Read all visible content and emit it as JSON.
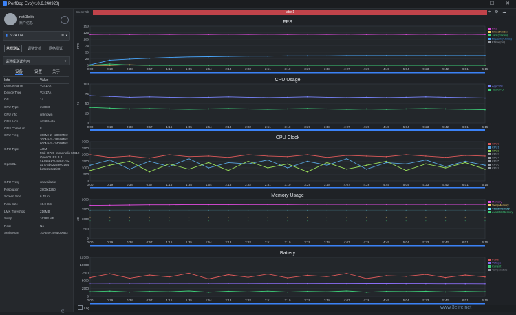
{
  "window": {
    "title": "PerfDog Evo(v10.6.240920)",
    "controls": [
      "—",
      "☐",
      "✕"
    ]
  },
  "user": {
    "name": "net 3elife",
    "account": "账户信息"
  },
  "device": {
    "name": "V2417A"
  },
  "mode_tabs": [
    "常规测试",
    "调整分析",
    "网络测试"
  ],
  "app_select": {
    "placeholder": "请选择测试应用"
  },
  "sub_tabs": [
    "设备",
    "设置",
    "关于"
  ],
  "info": {
    "headers": [
      "Info",
      "Value"
    ],
    "rows": [
      {
        "k": "Device Name",
        "v": "V2417A"
      },
      {
        "k": "Device Type",
        "v": "V2417A"
      },
      {
        "k": "OS",
        "v": "14"
      },
      {
        "k": "CPU Type",
        "v": "mt6989"
      },
      {
        "k": "CPU Info",
        "v": "unknown"
      },
      {
        "k": "CPU Arch",
        "v": "arm64-v8a"
      },
      {
        "k": "CPU CoreNum",
        "v": "8"
      },
      {
        "k": "CPU Freq",
        "v": "300MHz - 2000MHz\n300MHz - 2850MHz\n600MHz - 3400MHz"
      },
      {
        "k": "GPU Type",
        "v": "ARM\nMali-G720-Immortalis MC12\nOpenGL ES 3.2\nv1.r44p1-01eac0.752\na1773b6225fee3164\nbd9e2a0e2fa0"
      },
      {
        "k": "OpenGL",
        "v": ""
      },
      {
        "k": "GPU Freq",
        "v": "unavailable"
      },
      {
        "k": "Resolution",
        "v": "2800x1260"
      },
      {
        "k": "Screen Size",
        "v": "6.78 in"
      },
      {
        "k": "Ram Size",
        "v": "15.0 GB"
      },
      {
        "k": "LMK Threshold",
        "v": "216MB"
      },
      {
        "k": "Swap",
        "v": "16383 MB"
      },
      {
        "k": "Root",
        "v": "No"
      },
      {
        "k": "SerialNum",
        "v": "10AE9720NL000D2"
      }
    ]
  },
  "topbar": {
    "scene_tab": "SceneTab",
    "label": "label1",
    "icons": [
      "location-icon",
      "settings-icon",
      "cloud-icon"
    ]
  },
  "bottom": {
    "log_label": "Log"
  },
  "watermark": "www.3elife.net",
  "colors": {
    "accent": "#3b82f6",
    "label_bar": "#c0434a"
  },
  "chart_data": [
    {
      "type": "line",
      "title": "FPS",
      "ylabel": "FPS",
      "ylim": [
        0,
        150
      ],
      "yticks": [
        0,
        25,
        50,
        75,
        100,
        125,
        150
      ],
      "x": [
        "0:00",
        "0:19",
        "0:38",
        "0:57",
        "1:16",
        "1:35",
        "1:54",
        "2:13",
        "2:32",
        "2:51",
        "3:10",
        "3:29",
        "3:48",
        "4:07",
        "4:26",
        "4:45",
        "5:04",
        "5:23",
        "5:42",
        "6:01",
        "6:15"
      ],
      "series": [
        {
          "name": "FPS",
          "color": "#e24be0",
          "values": [
            118,
            119,
            118,
            119,
            118,
            119,
            118,
            119,
            118,
            119,
            118,
            119,
            118,
            119,
            118,
            119,
            118,
            119,
            118,
            119,
            118
          ]
        },
        {
          "name": "Jank",
          "color": "#ffd36a",
          "values": [
            0,
            0,
            2,
            0,
            0,
            0,
            0,
            0,
            0,
            0,
            0,
            0,
            0,
            0,
            0,
            0,
            0,
            0,
            0,
            0,
            0
          ]
        },
        {
          "name": "Stutter",
          "color": "#3fd17a",
          "values": [
            0,
            5,
            1,
            0,
            0,
            0,
            0,
            0,
            0,
            0,
            0,
            0,
            0,
            0,
            0,
            0,
            0,
            0,
            0,
            0,
            0
          ]
        },
        {
          "name": "FTime",
          "color": "#4aa8ff",
          "values": [
            2,
            20,
            24,
            27,
            30,
            32,
            33,
            34,
            35,
            35,
            36,
            36,
            36,
            37,
            37,
            37,
            37,
            37,
            37,
            37,
            37
          ]
        }
      ],
      "legend": [
        "FPS",
        "SmoothIndex",
        "Jank(/10min)",
        "BigJank(/10min)",
        "FTime(ms)"
      ]
    },
    {
      "type": "line",
      "title": "CPU Usage",
      "ylabel": "%",
      "ylim": [
        0,
        100
      ],
      "yticks": [
        0,
        25,
        50,
        75,
        100
      ],
      "x": [
        "0:00",
        "0:19",
        "0:38",
        "0:57",
        "1:16",
        "1:35",
        "1:54",
        "2:13",
        "2:32",
        "2:51",
        "3:10",
        "3:29",
        "3:48",
        "4:07",
        "4:26",
        "4:45",
        "5:04",
        "5:23",
        "5:42",
        "6:01",
        "6:15"
      ],
      "series": [
        {
          "name": "TotalCPU",
          "color": "#7a86ff",
          "values": [
            70,
            68,
            66,
            67,
            66,
            65,
            66,
            67,
            66,
            65,
            66,
            67,
            66,
            65,
            66,
            65,
            66,
            67,
            66,
            65,
            64
          ]
        },
        {
          "name": "AppCPU",
          "color": "#3fd17a",
          "values": [
            40,
            38,
            36,
            37,
            36,
            35,
            36,
            37,
            36,
            35,
            36,
            37,
            36,
            35,
            36,
            35,
            36,
            37,
            36,
            35,
            34
          ]
        }
      ],
      "legend": [
        "AppCPU",
        "TotalCPU"
      ]
    },
    {
      "type": "line",
      "title": "CPU Clock",
      "ylim": [
        0,
        3000
      ],
      "yticks": [
        0,
        500,
        1000,
        1500,
        2000,
        2500,
        3000
      ],
      "x": [
        "0:00",
        "0:19",
        "0:38",
        "0:57",
        "1:16",
        "1:35",
        "1:54",
        "2:13",
        "2:32",
        "2:51",
        "3:10",
        "3:29",
        "3:48",
        "4:07",
        "4:26",
        "4:45",
        "5:04",
        "5:23",
        "5:42",
        "6:01",
        "6:15"
      ],
      "series": [
        {
          "name": "CPU0",
          "color": "#e05a5a",
          "values": [
            2000,
            1800,
            1900,
            1750,
            2000,
            1850,
            1900,
            1800,
            2000,
            1900,
            1850,
            2000,
            1800,
            1950,
            1900,
            1850,
            2000,
            1900,
            1800,
            1950,
            1900
          ]
        },
        {
          "name": "CPU4",
          "color": "#5aa7e0",
          "values": [
            1200,
            1600,
            900,
            1500,
            1100,
            1700,
            1000,
            1400,
            1300,
            1600,
            1000,
            1500,
            1200,
            1700,
            900,
            1400,
            1300,
            1600,
            1100,
            1500,
            1200
          ]
        },
        {
          "name": "CPU7",
          "color": "#9adf5a",
          "values": [
            800,
            1200,
            1500,
            700,
            1300,
            900,
            1400,
            800,
            1500,
            1000,
            1300,
            700,
            1400,
            900,
            1200,
            1500,
            800,
            1300,
            1000,
            1400,
            900
          ]
        }
      ],
      "legend": [
        "CPU0",
        "CPU1",
        "CPU2",
        "CPU3",
        "CPU4",
        "CPU5",
        "CPU6",
        "CPU7"
      ]
    },
    {
      "type": "line",
      "title": "Memory Usage",
      "ylabel": "MB",
      "ylim": [
        0,
        2000
      ],
      "yticks": [
        0,
        500,
        1000,
        1500,
        2000
      ],
      "x": [
        "0:00",
        "0:19",
        "0:38",
        "0:57",
        "1:16",
        "1:35",
        "1:54",
        "2:13",
        "2:32",
        "2:51",
        "3:10",
        "3:29",
        "3:48",
        "4:07",
        "4:26",
        "4:45",
        "5:04",
        "5:23",
        "5:42",
        "6:01",
        "6:15"
      ],
      "series": [
        {
          "name": "Memory",
          "color": "#e24be0",
          "values": [
            1700,
            1710,
            1720,
            1730,
            1730,
            1740,
            1740,
            1740,
            1745,
            1745,
            1745,
            1750,
            1750,
            1750,
            1750,
            1750,
            1750,
            1750,
            1750,
            1750,
            1750
          ]
        },
        {
          "name": "SwapMemory",
          "color": "#ffd36a",
          "values": [
            1100,
            1100,
            1100,
            1100,
            1100,
            1100,
            1100,
            1100,
            1100,
            1100,
            1100,
            1100,
            1100,
            1100,
            1100,
            1100,
            1100,
            1100,
            1100,
            1100,
            1100
          ]
        },
        {
          "name": "VirtualMemory",
          "color": "#6ee7ff",
          "values": [
            1450,
            1450,
            1450,
            1450,
            1450,
            1450,
            1450,
            1450,
            1450,
            1450,
            1450,
            1450,
            1450,
            1450,
            1450,
            1450,
            1450,
            1450,
            1450,
            1450,
            1450
          ]
        },
        {
          "name": "Available",
          "color": "#3fd17a",
          "values": [
            900,
            900,
            900,
            900,
            900,
            900,
            900,
            900,
            900,
            900,
            900,
            900,
            900,
            900,
            900,
            900,
            900,
            900,
            900,
            900,
            900
          ]
        }
      ],
      "legend": [
        "Memory",
        "SwapMemory",
        "VirtualMemory",
        "AvailableMemory"
      ]
    },
    {
      "type": "line",
      "title": "Battery",
      "ylim": [
        0,
        12500
      ],
      "yticks": [
        0,
        2500,
        5000,
        7500,
        10000,
        12500
      ],
      "x": [
        "0:00",
        "0:19",
        "0:38",
        "0:57",
        "1:16",
        "1:35",
        "1:54",
        "2:13",
        "2:32",
        "2:51",
        "3:10",
        "3:29",
        "3:48",
        "4:07",
        "4:26",
        "4:45",
        "5:04",
        "5:23",
        "5:42",
        "6:01",
        "6:15"
      ],
      "series": [
        {
          "name": "Power",
          "color": "#e05a5a",
          "values": [
            6000,
            7200,
            5800,
            6800,
            6200,
            7400,
            5600,
            6900,
            6100,
            7100,
            5900,
            6700,
            6300,
            7300,
            5700,
            6600,
            6400,
            7000,
            6000,
            6800,
            6200
          ]
        },
        {
          "name": "Voltage",
          "color": "#8a6df5",
          "values": [
            4200,
            4190,
            4180,
            4170,
            4160,
            4150,
            4140,
            4130,
            4120,
            4110,
            4100,
            4090,
            4080,
            4070,
            4060,
            4050,
            4040,
            4030,
            4020,
            4010,
            4000
          ]
        },
        {
          "name": "Current",
          "color": "#3fd17a",
          "values": [
            1500,
            1700,
            1400,
            1600,
            1500,
            1750,
            1350,
            1650,
            1450,
            1700,
            1400,
            1600,
            1500,
            1750,
            1350,
            1600,
            1550,
            1650,
            1450,
            1600,
            1500
          ]
        }
      ],
      "legend": [
        "Power",
        "Voltage",
        "Current",
        "Temperature"
      ]
    }
  ]
}
